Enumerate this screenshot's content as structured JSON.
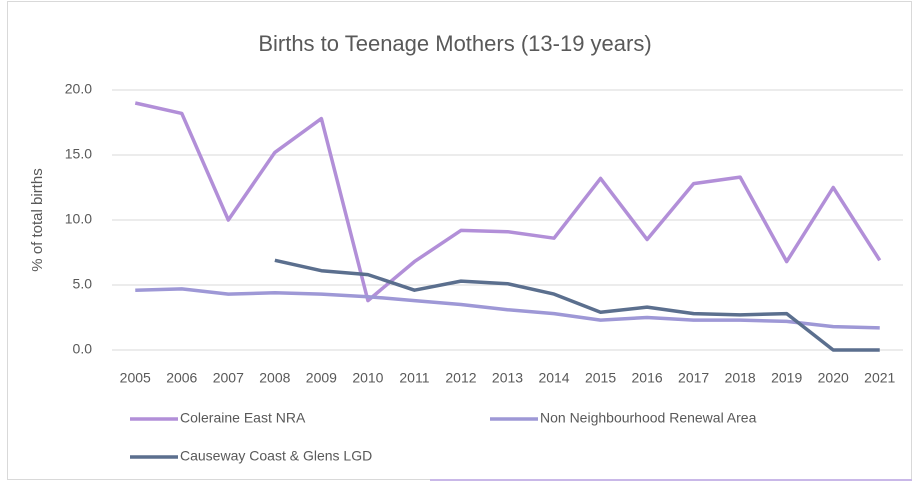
{
  "chart_data": {
    "type": "line",
    "title": "Births to Teenage Mothers (13-19 years)",
    "y_label": "% of total births",
    "categories": [
      "2005",
      "2006",
      "2007",
      "2008",
      "2009",
      "2010",
      "2011",
      "2012",
      "2013",
      "2014",
      "2015",
      "2016",
      "2017",
      "2018",
      "2019",
      "2020",
      "2021"
    ],
    "series": [
      {
        "name": "Coleraine East NRA",
        "color": "#b28fd8",
        "values": [
          19.0,
          18.2,
          10.0,
          15.2,
          17.8,
          3.8,
          6.8,
          9.2,
          9.1,
          8.6,
          13.2,
          8.5,
          12.8,
          13.3,
          6.8,
          12.5,
          6.9
        ]
      },
      {
        "name": "Non Neighbourhood Renewal Area",
        "color": "#9e98d6",
        "values": [
          4.6,
          4.7,
          4.3,
          4.4,
          4.3,
          4.1,
          3.8,
          3.5,
          3.1,
          2.8,
          2.3,
          2.5,
          2.3,
          2.3,
          2.2,
          1.8,
          1.7
        ]
      },
      {
        "name": "Causeway Coast & Glens LGD",
        "color": "#5b6f8e",
        "values": [
          null,
          null,
          null,
          6.9,
          6.1,
          5.8,
          4.6,
          5.3,
          5.1,
          4.3,
          2.9,
          3.3,
          2.8,
          2.7,
          2.8,
          0.0,
          0.0
        ]
      }
    ],
    "ylim": [
      0,
      20
    ],
    "yticks": [
      {
        "value": 0,
        "label": "0.0"
      },
      {
        "value": 5,
        "label": "5.0"
      },
      {
        "value": 10,
        "label": "10.0"
      },
      {
        "value": 15,
        "label": "15.0"
      },
      {
        "value": 20,
        "label": "20.0"
      }
    ],
    "grid": true,
    "legend": "bottom"
  }
}
